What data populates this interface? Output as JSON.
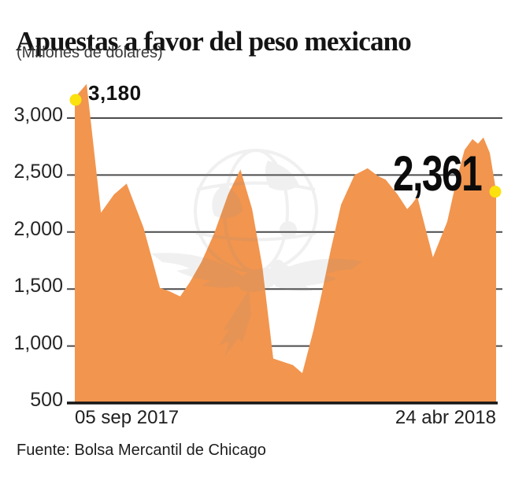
{
  "header": {
    "title": "Apuestas a favor del peso mexicano",
    "subtitle": "(Millones de dólares)"
  },
  "footer": {
    "source": "Fuente: Bolsa Mercantil de Chicago"
  },
  "watermark": {
    "name": "eagle-globe-watermark"
  },
  "chart_data": {
    "type": "area",
    "title": "Apuestas a favor del peso mexicano",
    "units": "Millones de dólares",
    "grid": true,
    "x_axis": {
      "labels": [
        "05 sep 2017",
        "24 abr 2018"
      ]
    },
    "y_axis": {
      "ticks": [
        500,
        1000,
        1500,
        2000,
        2500,
        3000
      ],
      "tick_labels": [
        "500",
        "1,000",
        "1,500",
        "2,000",
        "2,500",
        "3,000"
      ],
      "range": [
        500,
        3345
      ]
    },
    "annotations": {
      "first_point": {
        "label": "3,180",
        "value": 3180
      },
      "last_point": {
        "label": "2,361",
        "value": 2361
      }
    },
    "colors": {
      "area": "#F2954E",
      "marker": "#FBE10D",
      "gridline": "#4C4C4C",
      "axis": "#151515"
    },
    "points": [
      {
        "x": 0.0,
        "v": 3180
      },
      {
        "x": 0.028,
        "v": 3300
      },
      {
        "x": 0.062,
        "v": 2170
      },
      {
        "x": 0.093,
        "v": 2330
      },
      {
        "x": 0.123,
        "v": 2425
      },
      {
        "x": 0.163,
        "v": 2040
      },
      {
        "x": 0.202,
        "v": 1510
      },
      {
        "x": 0.226,
        "v": 1478
      },
      {
        "x": 0.25,
        "v": 1435
      },
      {
        "x": 0.273,
        "v": 1560
      },
      {
        "x": 0.301,
        "v": 1740
      },
      {
        "x": 0.331,
        "v": 1990
      },
      {
        "x": 0.364,
        "v": 2330
      },
      {
        "x": 0.393,
        "v": 2550
      },
      {
        "x": 0.421,
        "v": 2200
      },
      {
        "x": 0.445,
        "v": 1700
      },
      {
        "x": 0.471,
        "v": 890
      },
      {
        "x": 0.518,
        "v": 832
      },
      {
        "x": 0.54,
        "v": 762
      },
      {
        "x": 0.566,
        "v": 1130
      },
      {
        "x": 0.585,
        "v": 1445
      },
      {
        "x": 0.607,
        "v": 1835
      },
      {
        "x": 0.632,
        "v": 2240
      },
      {
        "x": 0.664,
        "v": 2500
      },
      {
        "x": 0.695,
        "v": 2560
      },
      {
        "x": 0.72,
        "v": 2490
      },
      {
        "x": 0.738,
        "v": 2460
      },
      {
        "x": 0.766,
        "v": 2330
      },
      {
        "x": 0.789,
        "v": 2200
      },
      {
        "x": 0.8,
        "v": 2245
      },
      {
        "x": 0.813,
        "v": 2310
      },
      {
        "x": 0.85,
        "v": 1778
      },
      {
        "x": 0.884,
        "v": 2090
      },
      {
        "x": 0.907,
        "v": 2470
      },
      {
        "x": 0.925,
        "v": 2720
      },
      {
        "x": 0.944,
        "v": 2815
      },
      {
        "x": 0.957,
        "v": 2775
      },
      {
        "x": 0.97,
        "v": 2830
      },
      {
        "x": 0.985,
        "v": 2695
      },
      {
        "x": 1.0,
        "v": 2361
      }
    ]
  }
}
